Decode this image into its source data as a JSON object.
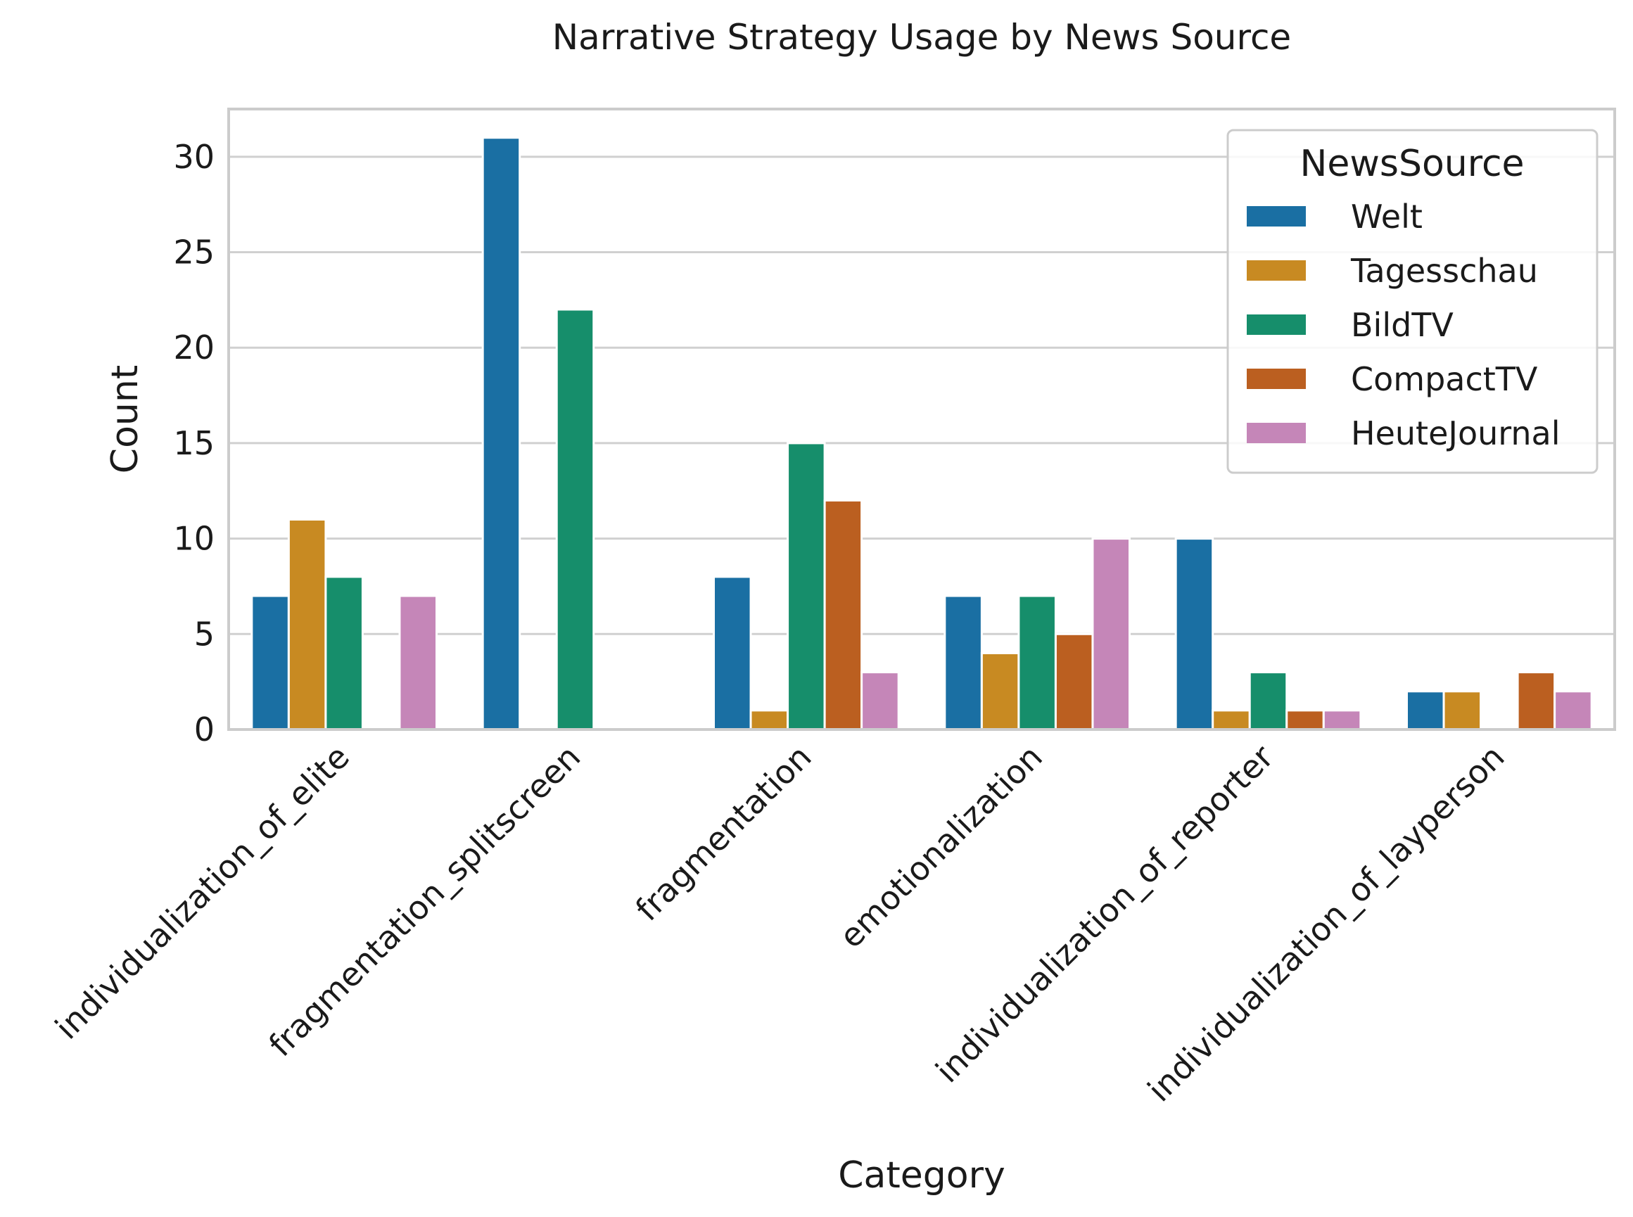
{
  "chart_data": {
    "type": "bar",
    "title": "Narrative Strategy Usage by News Source",
    "xlabel": "Category",
    "ylabel": "Count",
    "ylim": [
      0,
      32.5
    ],
    "yticks": [
      0,
      5,
      10,
      15,
      20,
      25,
      30
    ],
    "grid": true,
    "legend": {
      "title": "NewsSource",
      "position": "top-right"
    },
    "categories": [
      "individualization_of_elite",
      "fragmentation_splitscreen",
      "fragmentation",
      "emotionalization",
      "individualization_of_reporter",
      "individualization_of_layperson"
    ],
    "series": [
      {
        "name": "Welt",
        "color": "#1a6fa3",
        "values": [
          7,
          31,
          8,
          7,
          10,
          2
        ]
      },
      {
        "name": "Tagesschau",
        "color": "#c88a22",
        "values": [
          11,
          0,
          1,
          4,
          1,
          2
        ]
      },
      {
        "name": "BildTV",
        "color": "#168e6b",
        "values": [
          8,
          22,
          15,
          7,
          3,
          0
        ]
      },
      {
        "name": "CompactTV",
        "color": "#bb5f20",
        "values": [
          0,
          0,
          12,
          5,
          1,
          3
        ]
      },
      {
        "name": "HeuteJournal",
        "color": "#c586b8",
        "values": [
          7,
          0,
          3,
          10,
          1,
          2
        ]
      }
    ]
  }
}
